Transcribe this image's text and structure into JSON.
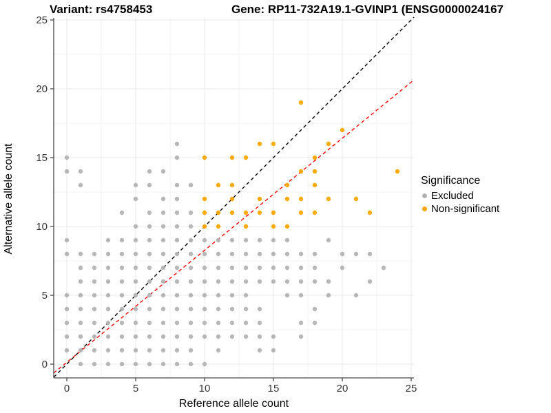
{
  "titles": {
    "variant": "Variant: rs4758453",
    "gene": "Gene: RP11-732A19.1-GVINP1 (ENSG0000024167"
  },
  "axes": {
    "x_label": "Reference allele count",
    "y_label": "Alternative allele count",
    "x_tick_labels": [
      "0",
      "5",
      "10",
      "15",
      "20",
      "25"
    ],
    "y_tick_labels": [
      "0",
      "5",
      "10",
      "15",
      "20",
      "25"
    ],
    "x_tick_values": [
      0,
      5,
      10,
      15,
      20,
      25
    ],
    "y_tick_values": [
      0,
      5,
      10,
      15,
      20,
      25
    ],
    "minor_tick_values": [
      2.5,
      7.5,
      12.5,
      17.5,
      22.5
    ]
  },
  "legend": {
    "title": "Significance",
    "items": [
      {
        "label": "Excluded",
        "color": "#b3b3b3"
      },
      {
        "label": "Non-significant",
        "color": "#ffa500"
      }
    ]
  },
  "style": {
    "grid_major_color": "#e8e8e8",
    "grid_minor_color": "#f3f3f3",
    "axis_line_color": "#474747",
    "tick_label_color": "#333333",
    "point_gray": "#b3b3b3",
    "point_orange": "#ffa500",
    "identity_line_color": "#000000",
    "fit_line_color": "#ff0000"
  },
  "chart_data": {
    "type": "scatter",
    "title_left": "Variant: rs4758453",
    "title_right": "Gene: RP11-732A19.1-GVINP1 (ENSG0000024167",
    "xlabel": "Reference allele count",
    "ylabel": "Alternative allele count",
    "xlim": [
      -0.95,
      25.2
    ],
    "ylim": [
      -1.0,
      26.0
    ],
    "grid": true,
    "legend_position": "right",
    "series": [
      {
        "name": "Excluded",
        "color": "#b3b3b3",
        "points": [
          [
            0,
            1
          ],
          [
            0,
            2
          ],
          [
            0,
            3
          ],
          [
            0,
            4
          ],
          [
            0,
            5
          ],
          [
            0,
            8
          ],
          [
            0,
            9
          ],
          [
            0,
            14
          ],
          [
            0,
            15
          ],
          [
            1,
            0
          ],
          [
            1,
            1
          ],
          [
            1,
            2
          ],
          [
            1,
            3
          ],
          [
            1,
            4
          ],
          [
            1,
            5
          ],
          [
            1,
            6
          ],
          [
            1,
            7
          ],
          [
            1,
            8
          ],
          [
            1,
            13
          ],
          [
            1,
            14
          ],
          [
            2,
            0
          ],
          [
            2,
            1
          ],
          [
            2,
            2
          ],
          [
            2,
            3
          ],
          [
            2,
            4
          ],
          [
            2,
            5
          ],
          [
            2,
            6
          ],
          [
            2,
            7
          ],
          [
            2,
            8
          ],
          [
            3,
            0
          ],
          [
            3,
            1
          ],
          [
            3,
            2
          ],
          [
            3,
            3
          ],
          [
            3,
            4
          ],
          [
            3,
            5
          ],
          [
            3,
            6
          ],
          [
            3,
            7
          ],
          [
            3,
            8
          ],
          [
            3,
            9
          ],
          [
            4,
            0
          ],
          [
            4,
            1
          ],
          [
            4,
            2
          ],
          [
            4,
            3
          ],
          [
            4,
            4
          ],
          [
            4,
            5
          ],
          [
            4,
            6
          ],
          [
            4,
            7
          ],
          [
            4,
            8
          ],
          [
            4,
            9
          ],
          [
            4,
            11
          ],
          [
            5,
            0
          ],
          [
            5,
            1
          ],
          [
            5,
            2
          ],
          [
            5,
            3
          ],
          [
            5,
            4
          ],
          [
            5,
            5
          ],
          [
            5,
            6
          ],
          [
            5,
            7
          ],
          [
            5,
            8
          ],
          [
            5,
            9
          ],
          [
            5,
            10
          ],
          [
            5,
            12
          ],
          [
            5,
            13
          ],
          [
            6,
            0
          ],
          [
            6,
            1
          ],
          [
            6,
            2
          ],
          [
            6,
            3
          ],
          [
            6,
            4
          ],
          [
            6,
            5
          ],
          [
            6,
            6
          ],
          [
            6,
            7
          ],
          [
            6,
            8
          ],
          [
            6,
            9
          ],
          [
            6,
            10
          ],
          [
            6,
            11
          ],
          [
            6,
            13
          ],
          [
            6,
            14
          ],
          [
            7,
            0
          ],
          [
            7,
            1
          ],
          [
            7,
            2
          ],
          [
            7,
            3
          ],
          [
            7,
            4
          ],
          [
            7,
            5
          ],
          [
            7,
            6
          ],
          [
            7,
            7
          ],
          [
            7,
            8
          ],
          [
            7,
            9
          ],
          [
            7,
            10
          ],
          [
            7,
            11
          ],
          [
            7,
            12
          ],
          [
            7,
            14
          ],
          [
            8,
            0
          ],
          [
            8,
            1
          ],
          [
            8,
            2
          ],
          [
            8,
            3
          ],
          [
            8,
            4
          ],
          [
            8,
            5
          ],
          [
            8,
            6
          ],
          [
            8,
            7
          ],
          [
            8,
            8
          ],
          [
            8,
            9
          ],
          [
            8,
            10
          ],
          [
            8,
            11
          ],
          [
            8,
            12
          ],
          [
            8,
            13
          ],
          [
            8,
            15
          ],
          [
            8,
            16
          ],
          [
            9,
            0
          ],
          [
            9,
            1
          ],
          [
            9,
            2
          ],
          [
            9,
            3
          ],
          [
            9,
            4
          ],
          [
            9,
            5
          ],
          [
            9,
            6
          ],
          [
            9,
            7
          ],
          [
            9,
            8
          ],
          [
            9,
            9
          ],
          [
            9,
            10
          ],
          [
            9,
            11
          ],
          [
            9,
            13
          ],
          [
            10,
            0
          ],
          [
            10,
            2
          ],
          [
            10,
            3
          ],
          [
            10,
            4
          ],
          [
            10,
            5
          ],
          [
            10,
            6
          ],
          [
            10,
            7
          ],
          [
            10,
            8
          ],
          [
            10,
            9
          ],
          [
            11,
            1
          ],
          [
            11,
            2
          ],
          [
            11,
            3
          ],
          [
            11,
            4
          ],
          [
            11,
            5
          ],
          [
            11,
            6
          ],
          [
            11,
            7
          ],
          [
            11,
            8
          ],
          [
            11,
            9
          ],
          [
            12,
            2
          ],
          [
            12,
            3
          ],
          [
            12,
            4
          ],
          [
            12,
            5
          ],
          [
            12,
            6
          ],
          [
            12,
            7
          ],
          [
            12,
            8
          ],
          [
            12,
            9
          ],
          [
            13,
            2
          ],
          [
            13,
            3
          ],
          [
            13,
            4
          ],
          [
            13,
            5
          ],
          [
            13,
            6
          ],
          [
            13,
            7
          ],
          [
            13,
            8
          ],
          [
            13,
            9
          ],
          [
            14,
            1
          ],
          [
            14,
            2
          ],
          [
            14,
            3
          ],
          [
            14,
            4
          ],
          [
            14,
            6
          ],
          [
            14,
            7
          ],
          [
            14,
            8
          ],
          [
            14,
            9
          ],
          [
            15,
            1
          ],
          [
            15,
            2
          ],
          [
            15,
            6
          ],
          [
            15,
            7
          ],
          [
            15,
            8
          ],
          [
            15,
            9
          ],
          [
            16,
            5
          ],
          [
            16,
            6
          ],
          [
            16,
            7
          ],
          [
            16,
            8
          ],
          [
            16,
            9
          ],
          [
            17,
            2
          ],
          [
            17,
            3
          ],
          [
            17,
            5
          ],
          [
            17,
            6
          ],
          [
            17,
            7
          ],
          [
            17,
            8
          ],
          [
            18,
            3
          ],
          [
            18,
            4
          ],
          [
            18,
            6
          ],
          [
            18,
            7
          ],
          [
            18,
            8
          ],
          [
            19,
            5
          ],
          [
            19,
            6
          ],
          [
            19,
            9
          ],
          [
            20,
            7
          ],
          [
            20,
            8
          ],
          [
            21,
            5
          ],
          [
            21,
            8
          ],
          [
            22,
            6
          ],
          [
            22,
            8
          ],
          [
            23,
            7
          ]
        ]
      },
      {
        "name": "Non-significant",
        "color": "#ffa500",
        "points": [
          [
            10,
            10
          ],
          [
            10,
            11
          ],
          [
            10,
            12
          ],
          [
            10,
            15
          ],
          [
            11,
            10
          ],
          [
            11,
            11
          ],
          [
            11,
            13
          ],
          [
            12,
            11
          ],
          [
            12,
            12
          ],
          [
            12,
            13
          ],
          [
            12,
            15
          ],
          [
            13,
            10
          ],
          [
            13,
            11
          ],
          [
            13,
            15
          ],
          [
            14,
            11
          ],
          [
            14,
            12
          ],
          [
            14,
            16
          ],
          [
            15,
            10
          ],
          [
            15,
            11
          ],
          [
            15,
            16
          ],
          [
            16,
            10
          ],
          [
            16,
            12
          ],
          [
            16,
            13
          ],
          [
            17,
            11
          ],
          [
            17,
            12
          ],
          [
            17,
            14
          ],
          [
            17,
            19
          ],
          [
            18,
            11
          ],
          [
            18,
            13
          ],
          [
            18,
            14
          ],
          [
            18,
            15
          ],
          [
            19,
            12
          ],
          [
            19,
            16
          ],
          [
            20,
            17
          ],
          [
            21,
            12
          ],
          [
            22,
            11
          ],
          [
            24,
            14
          ]
        ]
      }
    ],
    "lines": [
      {
        "name": "identity-line",
        "color": "#000000",
        "dashed": true,
        "slope": 1.0,
        "intercept": 0.0
      },
      {
        "name": "fit-line",
        "color": "#ff0000",
        "dashed": true,
        "slope": 0.814,
        "intercept": 0.13
      }
    ]
  }
}
